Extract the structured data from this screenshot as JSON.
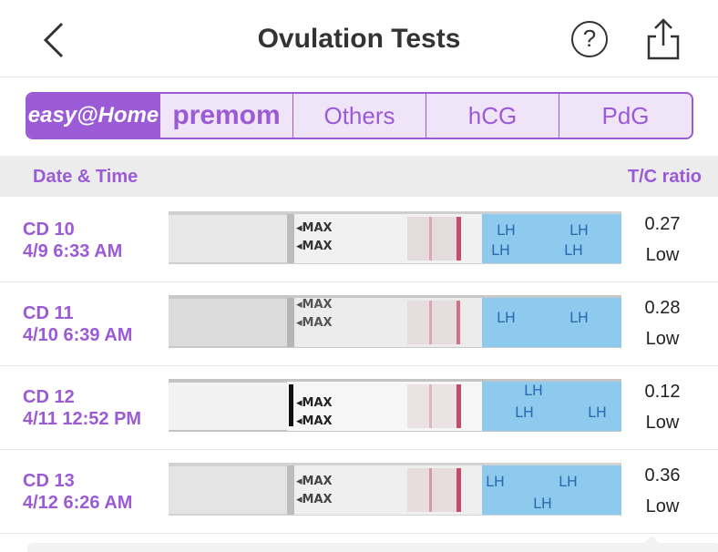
{
  "header": {
    "title": "Ovulation Tests",
    "help_label": "?"
  },
  "tabs": [
    {
      "label": "easy@Home",
      "selected": true
    },
    {
      "label": "premom",
      "selected": false
    },
    {
      "label": "Others",
      "selected": false
    },
    {
      "label": "hCG",
      "selected": false
    },
    {
      "label": "PdG",
      "selected": false
    }
  ],
  "columns": {
    "date_time": "Date & Time",
    "ratio": "T/C ratio"
  },
  "strip_text": {
    "max": "◂MAX",
    "lh": "LH"
  },
  "rows": [
    {
      "cd": "CD 10",
      "datetime": "4/9 6:33 AM",
      "ratio": "0.27",
      "level": "Low"
    },
    {
      "cd": "CD 11",
      "datetime": "4/10 6:39 AM",
      "ratio": "0.28",
      "level": "Low"
    },
    {
      "cd": "CD 12",
      "datetime": "4/11 12:52 PM",
      "ratio": "0.12",
      "level": "Low"
    },
    {
      "cd": "CD 13",
      "datetime": "4/12 6:26 AM",
      "ratio": "0.36",
      "level": "Low"
    }
  ],
  "colors": {
    "accent": "#9b5ad6",
    "strip_blue": "#8ec9ee",
    "test_line": "#c84a6a"
  }
}
